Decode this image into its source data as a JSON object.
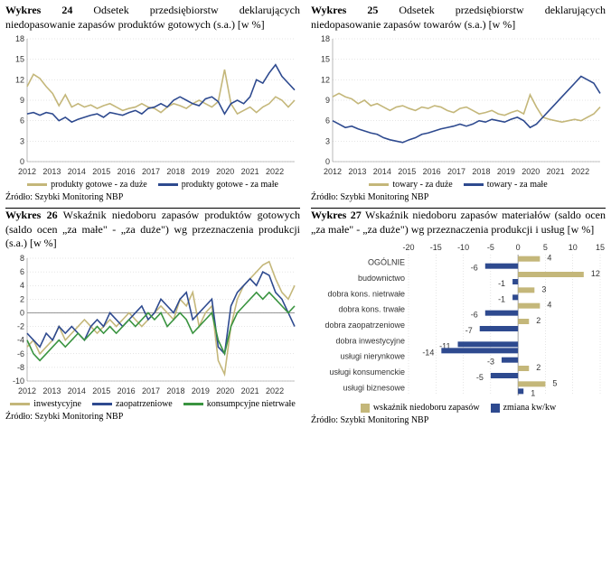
{
  "panels": {
    "c24": {
      "title_bold": "Wykres 24",
      "title_rest": " Odsetek przedsiębiorstw deklarujących niedopasowanie zapasów produktów gotowych (s.a.) [w %]",
      "source": "Źródło: Szybki Monitoring NBP",
      "type": "line",
      "ylim": [
        0,
        18
      ],
      "ytick_step": 3,
      "xticks": [
        "2012",
        "2013",
        "2014",
        "2015",
        "2016",
        "2017",
        "2018",
        "2019",
        "2020",
        "2021",
        "2022"
      ],
      "series": [
        {
          "name": "produkty gotowe - za duże",
          "color": "#c4b77a",
          "y": [
            11,
            12.8,
            12.2,
            11,
            10,
            8.2,
            9.8,
            8,
            8.5,
            8,
            8.3,
            7.8,
            8.2,
            8.5,
            8,
            7.5,
            7.8,
            8,
            8.5,
            8,
            7.8,
            7.2,
            8,
            8.5,
            8.2,
            7.8,
            8.5,
            9,
            8.5,
            8,
            8.8,
            13.5,
            8.5,
            7,
            7.5,
            8,
            7.2,
            8,
            8.5,
            9.5,
            9,
            8,
            9
          ]
        },
        {
          "name": "produkty gotowe - za małe",
          "color": "#2e4a8f",
          "y": [
            7,
            7.2,
            6.8,
            7.2,
            7,
            6,
            6.5,
            5.8,
            6.2,
            6.5,
            6.8,
            7,
            6.5,
            7.2,
            7,
            6.8,
            7.2,
            7.5,
            7,
            7.8,
            8,
            8.5,
            8,
            9,
            9.5,
            9,
            8.5,
            8.2,
            9.2,
            9.5,
            8.8,
            7,
            8.5,
            9,
            8.5,
            9.5,
            12,
            11.5,
            13,
            14.2,
            12.5,
            11.5,
            10.5
          ]
        }
      ],
      "legend": [
        {
          "label": "produkty gotowe - za duże",
          "color": "#c4b77a"
        },
        {
          "label": "produkty gotowe - za małe",
          "color": "#2e4a8f"
        }
      ]
    },
    "c25": {
      "title_bold": "Wykres 25",
      "title_rest": " Odsetek przedsiębiorstw deklarujących niedopasowanie zapasów towarów (s.a.) [w %]",
      "source": "Źródło: Szybki Monitoring NBP",
      "type": "line",
      "ylim": [
        0,
        18
      ],
      "ytick_step": 3,
      "xticks": [
        "2012",
        "2013",
        "2014",
        "2015",
        "2016",
        "2017",
        "2018",
        "2019",
        "2020",
        "2021",
        "2022"
      ],
      "series": [
        {
          "name": "towary - za duże",
          "color": "#c4b77a",
          "y": [
            9.5,
            10,
            9.5,
            9.2,
            8.5,
            9,
            8.2,
            8.5,
            8,
            7.5,
            8,
            8.2,
            7.8,
            7.5,
            8,
            7.8,
            8.2,
            8,
            7.5,
            7.2,
            7.8,
            8,
            7.5,
            7,
            7.2,
            7.5,
            7,
            6.8,
            7.2,
            7.5,
            7,
            9.8,
            8,
            6.5,
            6.2,
            6,
            5.8,
            6,
            6.2,
            6,
            6.5,
            7,
            8
          ]
        },
        {
          "name": "towary - za małe",
          "color": "#2e4a8f",
          "y": [
            6,
            5.5,
            5,
            5.2,
            4.8,
            4.5,
            4.2,
            4,
            3.5,
            3.2,
            3,
            2.8,
            3.2,
            3.5,
            4,
            4.2,
            4.5,
            4.8,
            5,
            5.2,
            5.5,
            5.2,
            5.5,
            6,
            5.8,
            6.2,
            6,
            5.8,
            6.2,
            6.5,
            6,
            5,
            5.5,
            6.5,
            7.5,
            8.5,
            9.5,
            10.5,
            11.5,
            12.5,
            12,
            11.5,
            10
          ]
        }
      ],
      "legend": [
        {
          "label": "towary - za duże",
          "color": "#c4b77a"
        },
        {
          "label": "towary - za małe",
          "color": "#2e4a8f"
        }
      ]
    },
    "c26": {
      "title_bold": "Wykres 26",
      "title_rest": " Wskaźnik niedoboru zapasów produktów gotowych (saldo ocen „za małe\" - „za duże\") wg przeznaczenia produkcji (s.a.) [w %]",
      "source": "Źródło: Szybki Monitoring NBP",
      "type": "line",
      "ylim": [
        -10,
        8
      ],
      "ytick_step": 2,
      "xticks": [
        "2012",
        "2013",
        "2014",
        "2015",
        "2016",
        "2017",
        "2018",
        "2019",
        "2020",
        "2021",
        "2022"
      ],
      "series": [
        {
          "name": "inwestycyjne",
          "color": "#c4b77a",
          "y": [
            -5,
            -4,
            -6,
            -5,
            -4,
            -2,
            -4,
            -3,
            -2,
            -1,
            -2,
            -3,
            -2,
            -1,
            -2,
            -1,
            0,
            -1,
            -2,
            -1,
            0,
            1,
            0,
            -1,
            2,
            1,
            3,
            -2,
            0,
            1,
            -7,
            -9,
            -2,
            2,
            4,
            5,
            6,
            7,
            7.5,
            5,
            3,
            2,
            4
          ]
        },
        {
          "name": "zaopatrzeniowe",
          "color": "#2e4a8f",
          "y": [
            -3,
            -4,
            -5,
            -3,
            -4,
            -2,
            -3,
            -2,
            -3,
            -4,
            -2,
            -1,
            -2,
            0,
            -1,
            -2,
            -1,
            0,
            1,
            -1,
            0,
            2,
            1,
            0,
            2,
            3,
            -1,
            0,
            1,
            2,
            -5,
            -6,
            1,
            3,
            4,
            5,
            4,
            6,
            5.5,
            3,
            2,
            0,
            -2
          ]
        },
        {
          "name": "konsumpcyjne nietrwałe",
          "color": "#3a9440",
          "y": [
            -4,
            -6,
            -7,
            -6,
            -5,
            -4,
            -5,
            -4,
            -3,
            -4,
            -3,
            -2,
            -3,
            -2,
            -3,
            -2,
            -1,
            -2,
            -1,
            0,
            -1,
            0,
            -2,
            -1,
            0,
            -1,
            -3,
            -2,
            -1,
            0,
            -4,
            -6,
            -2,
            0,
            1,
            2,
            3,
            2,
            3,
            2,
            1,
            0,
            1
          ]
        }
      ],
      "legend": [
        {
          "label": "inwestycyjne",
          "color": "#c4b77a"
        },
        {
          "label": "zaopatrzeniowe",
          "color": "#2e4a8f"
        },
        {
          "label": "konsumpcyjne nietrwałe",
          "color": "#3a9440"
        }
      ]
    },
    "c27": {
      "title_bold": "Wykres 27",
      "title_rest": " Wskaźnik niedoboru zapasów materiałów (saldo ocen „za małe\" - „za duże\") wg przeznaczenia produkcji i usług [w %]",
      "source": "Źródło: Szybki Monitoring NBP",
      "type": "hbar",
      "xlim": [
        -20,
        15
      ],
      "xtick_step": 5,
      "categories": [
        "OGÓLNIE",
        "budownictwo",
        "dobra kons. nietrwałe",
        "dobra kons. trwałe",
        "dobra zaopatrzeniowe",
        "dobra inwestycyjne",
        "usługi nierynkowe",
        "usługi konsumenckie",
        "usługi biznesowe"
      ],
      "series": [
        {
          "name": "wskaźnik niedoboru zapasów",
          "color": "#c4b77a",
          "values": [
            4,
            12,
            3,
            4,
            2,
            0,
            0,
            2,
            5
          ]
        },
        {
          "name": "zmiana kw/kw",
          "color": "#2e4a8f",
          "values": [
            -6,
            -1,
            -1,
            -6,
            -7,
            -11,
            -14,
            -3,
            -5,
            1
          ],
          "values_map": {
            "OGÓLNIE": -6,
            "budownictwo": -1,
            "dobra kons. nietrwałe": -1,
            "dobra kons. trwałe": -6,
            "dobra zaopatrzeniowe": -7,
            "dobra inwestycyjne": -11,
            "dobra inwestycyjne2": -14,
            "usługi nierynkowe": -3,
            "usługi konsumenckie": -5,
            "usługi biznesowe": 1
          }
        }
      ],
      "bars": [
        {
          "cat": "OGÓLNIE",
          "tan": 4,
          "blue": -6
        },
        {
          "cat": "budownictwo",
          "tan": 12,
          "blue": -1
        },
        {
          "cat": "dobra kons. nietrwałe",
          "tan": 3,
          "blue": -1
        },
        {
          "cat": "dobra kons. trwałe",
          "tan": 4,
          "blue": -6
        },
        {
          "cat": "dobra zaopatrzeniowe",
          "tan": 2,
          "blue": -7
        },
        {
          "cat": "dobra inwestycyjne",
          "tan": 0,
          "blue": -11,
          "blue2": -14
        },
        {
          "cat": "usługi nierynkowe",
          "tan": 0,
          "blue": -3
        },
        {
          "cat": "usługi konsumenckie",
          "tan": 2,
          "blue": -5
        },
        {
          "cat": "usługi biznesowe",
          "tan": 5,
          "blue": 1
        }
      ],
      "legend": [
        {
          "label": "wskaźnik niedoboru zapasów",
          "color": "#c4b77a",
          "shape": "box"
        },
        {
          "label": "zmiana kw/kw",
          "color": "#2e4a8f",
          "shape": "box"
        }
      ]
    }
  },
  "chart_bg": "#ffffff",
  "grid_color": "#cccccc"
}
